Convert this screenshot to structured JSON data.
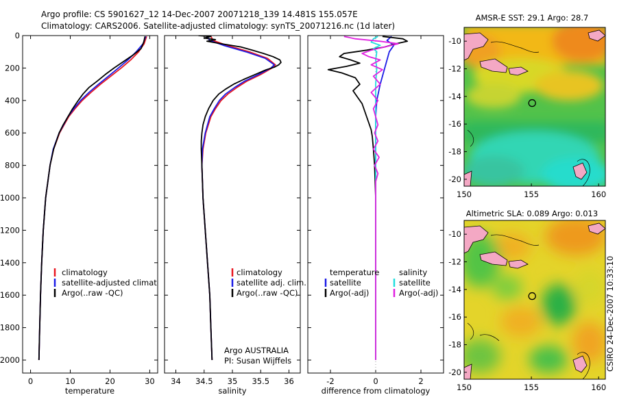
{
  "header": {
    "line1": "Argo profile: CS 5901627_12 14-Dec-2007 20071218_139 14.481S 155.057E",
    "line2": "Climatology: CARS2006. Satellite-adjusted climatology: synTS_20071216.nc (1d later)"
  },
  "side_label": "CSIRO 24-Dec-2007 10:33:10",
  "colors": {
    "climatology": "#e8141e",
    "satellite": "#1a1ae6",
    "argo": "#000000",
    "salinity_satellite": "#20dede",
    "salinity_argo": "#e020e0"
  },
  "chart_data": [
    {
      "id": "temperature",
      "type": "line",
      "xlabel": "temperature",
      "ylabel": "",
      "xlim": [
        -2,
        32
      ],
      "ylim": [
        2080,
        0
      ],
      "xticks": [
        "0",
        "10",
        "20",
        "30"
      ],
      "xtick_values": [
        0,
        10,
        20,
        30
      ],
      "yticks": [
        "0",
        "200",
        "400",
        "600",
        "800",
        "1000",
        "1200",
        "1400",
        "1600",
        "1800",
        "2000"
      ],
      "ytick_values": [
        0,
        200,
        400,
        600,
        800,
        1000,
        1200,
        1400,
        1600,
        1800,
        2000
      ],
      "legend": [
        "climatology",
        "satellite-adjusted climatology",
        "Argo(..raw -QC)"
      ],
      "series": [
        {
          "name": "climatology",
          "color": "climatology",
          "depth": [
            5,
            50,
            100,
            150,
            200,
            250,
            300,
            350,
            400,
            450,
            500,
            600,
            700,
            800,
            1000,
            1200,
            1400,
            1600,
            1800,
            2000
          ],
          "values": [
            29.2,
            28.6,
            27.2,
            25.2,
            22.8,
            20.2,
            17.6,
            15.2,
            13.0,
            11.2,
            9.6,
            7.3,
            5.8,
            4.9,
            3.8,
            3.2,
            2.8,
            2.5,
            2.3,
            2.1
          ]
        },
        {
          "name": "satellite",
          "color": "satellite",
          "depth": [
            5,
            50,
            100,
            150,
            200,
            250,
            300,
            350,
            400,
            450,
            500,
            600,
            700,
            800,
            1000,
            1200,
            1400,
            1600,
            1800,
            2000
          ],
          "values": [
            29.0,
            28.3,
            26.6,
            24.5,
            22.1,
            19.6,
            17.1,
            14.7,
            12.6,
            10.9,
            9.4,
            7.2,
            5.7,
            4.9,
            3.8,
            3.2,
            2.8,
            2.5,
            2.3,
            2.1
          ]
        },
        {
          "name": "Argo",
          "color": "argo",
          "depth": [
            5,
            40,
            80,
            120,
            160,
            200,
            240,
            280,
            320,
            360,
            400,
            450,
            500,
            550,
            600,
            700,
            800,
            1000,
            1200,
            1400,
            1600,
            1800,
            2000
          ],
          "values": [
            28.8,
            28.5,
            27.8,
            25.8,
            23.4,
            21.0,
            18.8,
            16.8,
            14.7,
            13.2,
            12.0,
            10.6,
            9.4,
            8.2,
            7.2,
            5.8,
            4.9,
            3.8,
            3.2,
            2.8,
            2.5,
            2.3,
            2.1
          ]
        }
      ]
    },
    {
      "id": "salinity",
      "type": "line",
      "xlabel": "salinity",
      "xlim": [
        33.8,
        36.2
      ],
      "ylim": [
        2080,
        0
      ],
      "xticks": [
        "34",
        "34.5",
        "35",
        "35.5",
        "36"
      ],
      "xtick_values": [
        34,
        34.5,
        35,
        35.5,
        36
      ],
      "legend": [
        "climatology",
        "satellite adj. clim.",
        "Argo(..raw -QC)"
      ],
      "annotation": [
        "Argo AUSTRALIA",
        "PI: Susan Wijffels"
      ],
      "series": [
        {
          "name": "climatology",
          "color": "climatology",
          "depth": [
            5,
            30,
            60,
            100,
            140,
            180,
            200,
            240,
            280,
            320,
            360,
            400,
            450,
            500,
            600,
            700,
            800,
            1000,
            1200,
            1400,
            1600,
            1800,
            2000
          ],
          "values": [
            34.62,
            34.66,
            34.9,
            35.3,
            35.62,
            35.76,
            35.7,
            35.5,
            35.26,
            35.08,
            34.92,
            34.8,
            34.7,
            34.62,
            34.53,
            34.48,
            34.46,
            34.48,
            34.52,
            34.56,
            34.6,
            34.62,
            34.64
          ]
        },
        {
          "name": "satellite",
          "color": "satellite",
          "depth": [
            5,
            30,
            60,
            100,
            140,
            180,
            200,
            240,
            280,
            320,
            360,
            400,
            450,
            500,
            600,
            700,
            800,
            1000,
            1200,
            1400,
            1600,
            1800,
            2000
          ],
          "values": [
            34.55,
            34.6,
            34.84,
            35.24,
            35.58,
            35.74,
            35.68,
            35.46,
            35.22,
            35.04,
            34.88,
            34.77,
            34.68,
            34.6,
            34.52,
            34.47,
            34.46,
            34.48,
            34.52,
            34.56,
            34.6,
            34.62,
            34.64
          ]
        },
        {
          "name": "Argo",
          "color": "argo",
          "depth": [
            0,
            5,
            15,
            25,
            35,
            50,
            70,
            90,
            110,
            130,
            150,
            165,
            180,
            195,
            210,
            240,
            270,
            300,
            330,
            360,
            400,
            450,
            500,
            550,
            600,
            650,
            700,
            800,
            1000,
            1200,
            1400,
            1600,
            1800,
            2000
          ],
          "values": [
            34.4,
            34.62,
            34.5,
            34.7,
            34.55,
            34.8,
            35.15,
            35.35,
            35.55,
            35.72,
            35.84,
            35.86,
            35.82,
            35.74,
            35.6,
            35.4,
            35.2,
            35.02,
            34.88,
            34.76,
            34.66,
            34.58,
            34.52,
            34.48,
            34.46,
            34.45,
            34.45,
            34.46,
            34.48,
            34.52,
            34.56,
            34.6,
            34.62,
            34.64
          ]
        }
      ]
    },
    {
      "id": "difference",
      "type": "line",
      "xlabel": "difference from climatology",
      "xlim": [
        -3,
        3
      ],
      "ylim": [
        2080,
        0
      ],
      "xticks": [
        "-2",
        "0",
        "2"
      ],
      "xtick_values": [
        -2,
        0,
        2
      ],
      "legend": [
        "temperature",
        "satellite",
        "Argo(-adj)",
        "salinity",
        "satellite",
        "Argo(-adj)"
      ],
      "series": [
        {
          "name": "temperature satellite",
          "color": "satellite",
          "depth": [
            5,
            30,
            60,
            100,
            150,
            200,
            300,
            400,
            500,
            700,
            1000,
            1500,
            2000
          ],
          "values": [
            0.7,
            0.5,
            0.8,
            0.6,
            0.5,
            0.4,
            0.2,
            0.05,
            0.0,
            0.0,
            0.0,
            0.0,
            0.0
          ]
        },
        {
          "name": "temperature Argo(-adj)",
          "color": "argo",
          "depth": [
            5,
            20,
            35,
            50,
            70,
            90,
            110,
            130,
            150,
            170,
            190,
            210,
            230,
            260,
            300,
            340,
            380,
            420,
            460,
            500,
            540,
            580,
            620,
            700,
            800,
            1000,
            1400,
            2000
          ],
          "values": [
            0.3,
            1.2,
            1.4,
            0.9,
            0.4,
            -0.4,
            -1.4,
            -1.6,
            -1.1,
            -0.7,
            -1.3,
            -2.1,
            -1.5,
            -0.9,
            -0.7,
            -1.0,
            -0.8,
            -0.6,
            -0.5,
            -0.4,
            -0.3,
            -0.2,
            -0.15,
            -0.1,
            -0.05,
            0.0,
            0.0,
            0.0
          ]
        },
        {
          "name": "salinity satellite",
          "color": "salinity_satellite",
          "depth": [
            5,
            20,
            40,
            60,
            80,
            100,
            150,
            200,
            300,
            500,
            800,
            1200,
            2000
          ],
          "values": [
            0.1,
            -0.1,
            -0.2,
            0.2,
            -0.1,
            0.05,
            0.0,
            0.05,
            0.0,
            0.0,
            0.0,
            0.0,
            0.0
          ]
        },
        {
          "name": "salinity Argo(-adj)",
          "color": "salinity_argo",
          "depth": [
            5,
            20,
            35,
            50,
            70,
            90,
            110,
            130,
            150,
            180,
            210,
            250,
            300,
            350,
            400,
            450,
            500,
            550,
            600,
            650,
            700,
            750,
            800,
            850,
            900,
            1000,
            1200,
            1600,
            2000
          ],
          "values": [
            -1.4,
            -0.9,
            0.2,
            1.0,
            0.4,
            -0.2,
            -0.6,
            -0.3,
            0.2,
            -0.2,
            0.3,
            -0.1,
            0.2,
            -0.2,
            0.1,
            -0.1,
            0.0,
            0.1,
            -0.05,
            0.1,
            -0.1,
            0.15,
            -0.05,
            0.1,
            0.0,
            0.0,
            0.0,
            0.0,
            0.0
          ]
        }
      ]
    },
    {
      "id": "sst_map",
      "type": "heatmap",
      "title": "AMSR-E SST: 29.1 Argo: 28.7",
      "xlim": [
        150,
        160.5
      ],
      "ylim": [
        -20.5,
        -9
      ],
      "xticks": [
        "150",
        "155",
        "160"
      ],
      "xtick_values": [
        150,
        155,
        160
      ],
      "yticks": [
        "-10",
        "-12",
        "-14",
        "-16",
        "-18",
        "-20"
      ],
      "ytick_values": [
        -10,
        -12,
        -14,
        -16,
        -18,
        -20
      ],
      "marker": {
        "lon": 155.057,
        "lat": -14.481
      }
    },
    {
      "id": "sla_map",
      "type": "heatmap",
      "title": "Altimetric SLA: 0.089 Argo: 0.013",
      "xlim": [
        150,
        160.5
      ],
      "ylim": [
        -20.5,
        -9
      ],
      "xticks": [
        "150",
        "155",
        "160"
      ],
      "xtick_values": [
        150,
        155,
        160
      ],
      "yticks": [
        "-10",
        "-12",
        "-14",
        "-16",
        "-18",
        "-20"
      ],
      "ytick_values": [
        -10,
        -12,
        -14,
        -16,
        -18,
        -20
      ],
      "marker": {
        "lon": 155.057,
        "lat": -14.481
      }
    }
  ]
}
